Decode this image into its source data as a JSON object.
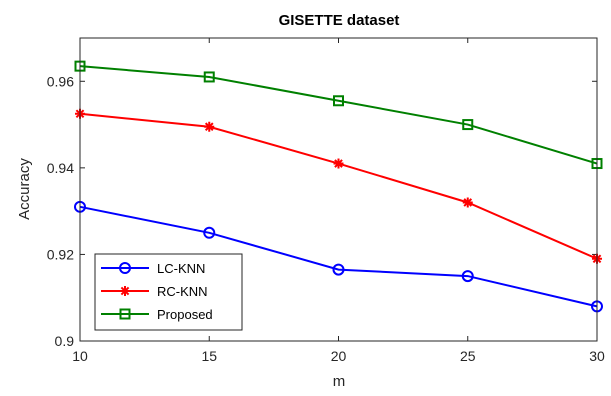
{
  "chart_data": {
    "type": "line",
    "title": "GISETTE dataset",
    "xlabel": "m",
    "ylabel": "Accuracy",
    "x": [
      10,
      15,
      20,
      25,
      30
    ],
    "xticks": [
      "10",
      "15",
      "20",
      "25",
      "30"
    ],
    "yticks": [
      "0.9",
      "0.92",
      "0.94",
      "0.96"
    ],
    "xlim": [
      10,
      30
    ],
    "ylim": [
      0.9,
      0.97
    ],
    "grid": false,
    "legend_position": "bottom-left",
    "series": [
      {
        "name": "LC-KNN",
        "color": "#0000ff",
        "marker": "circle",
        "values": [
          0.931,
          0.925,
          0.9165,
          0.915,
          0.908
        ]
      },
      {
        "name": "RC-KNN",
        "color": "#ff0000",
        "marker": "asterisk",
        "values": [
          0.9525,
          0.9495,
          0.941,
          0.932,
          0.919
        ]
      },
      {
        "name": "Proposed",
        "color": "#008000",
        "marker": "square",
        "values": [
          0.9635,
          0.961,
          0.9555,
          0.95,
          0.941
        ]
      }
    ]
  }
}
